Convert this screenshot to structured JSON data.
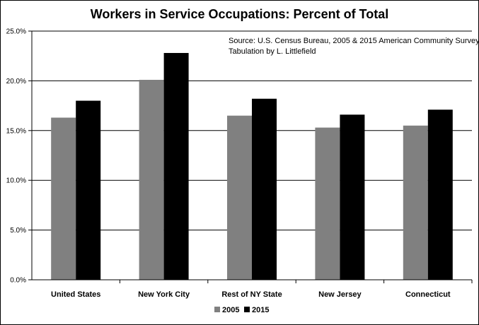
{
  "chart_data": {
    "type": "bar",
    "title": "Workers in Service Occupations:  Percent of Total",
    "annotation": [
      "Source:  U.S. Census Bureau, 2005 & 2015 American Community Survey",
      "Tabulation by L. Littlefield"
    ],
    "categories": [
      "United States",
      "New York City",
      "Rest of NY State",
      "New Jersey",
      "Connecticut"
    ],
    "series": [
      {
        "name": "2005",
        "color": "#808080",
        "values": [
          16.3,
          20.1,
          16.5,
          15.3,
          15.5
        ]
      },
      {
        "name": "2015",
        "color": "#000000",
        "values": [
          18.0,
          22.8,
          18.2,
          16.6,
          17.1
        ]
      }
    ],
    "ylim": [
      0,
      25
    ],
    "yticks": [
      0,
      5,
      10,
      15,
      20,
      25
    ],
    "ytick_labels": [
      "0.0%",
      "5.0%",
      "10.0%",
      "15.0%",
      "20.0%",
      "25.0%"
    ],
    "grid": true,
    "legend_position": "bottom",
    "xlabel": "",
    "ylabel": ""
  }
}
